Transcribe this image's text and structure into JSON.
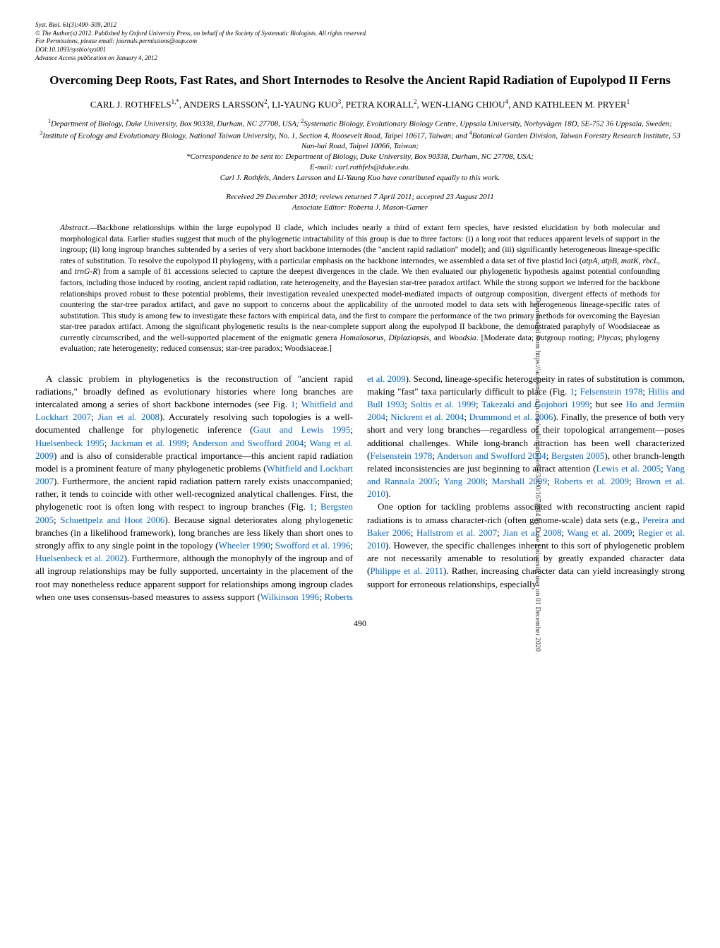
{
  "header": {
    "line1": "Syst. Biol. 61(3):490–509, 2012",
    "line2": "© The Author(s) 2012. Published by Oxford University Press, on behalf of the Society of Systematic Biologists. All rights reserved.",
    "line3": "For Permissions, please email: journals.permissions@oup.com",
    "line4": "DOI:10.1093/sysbio/sys001",
    "line5": "Advance Access publication on January 4, 2012"
  },
  "title": "Overcoming Deep Roots, Fast Rates, and Short Internodes to Resolve the Ancient Rapid Radiation of Eupolypod II Ferns",
  "authors": "CARL J. ROTHFELS<sup>1,*</sup>, ANDERS LARSSON<sup>2</sup>, LI-YAUNG KUO<sup>3</sup>, PETRA KORALL<sup>2</sup>, WEN-LIANG CHIOU<sup>4</sup>, AND KATHLEEN M. PRYER<sup>1</sup>",
  "affiliations": "<sup>1</sup>Department of Biology, Duke University, Box 90338, Durham, NC 27708, USA; <sup>2</sup>Systematic Biology, Evolutionary Biology Centre, Uppsala University, Norbyvägen 18D, SE-752 36 Uppsala, Sweden; <sup>3</sup>Institute of Ecology and Evolutionary Biology, National Taiwan University, No. 1, Section 4, Roosevelt Road, Taipei 10617, Taiwan; and <sup>4</sup>Botanical Garden Division, Taiwan Forestry Research Institute, 53 Nan-hai Road, Taipei 10066, Taiwan;<br>*Correspondence to be sent to: Department of Biology, Duke University, Box 90338, Durham, NC 27708, USA;<br>E-mail: carl.rothfels@duke.edu.<br>Carl J. Rothfels, Anders Larsson and Li-Yaung Kuo have contributed equally to this work.",
  "dates": "Received 29 December 2010; reviews returned 7 April 2011; accepted 23 August 2011<br>Associate Editor: Roberta J. Mason-Gamer",
  "abstract": "Backbone relationships within the large eupolypod II clade, which includes nearly a third of extant fern species, have resisted elucidation by both molecular and morphological data. Earlier studies suggest that much of the phylogenetic intractability of this group is due to three factors: (i) a long root that reduces apparent levels of support in the ingroup; (ii) long ingroup branches subtended by a series of very short backbone internodes (the \"ancient rapid radiation\" model); and (iii) significantly heterogeneous lineage-specific rates of substitution. To resolve the eupolypod II phylogeny, with a particular emphasis on the backbone internodes, we assembled a data set of five plastid loci (<i>atpA</i>, <i>atpB</i>, <i>matK</i>, <i>rbcL</i>, and <i>trnG-R</i>) from a sample of 81 accessions selected to capture the deepest divergences in the clade. We then evaluated our phylogenetic hypothesis against potential confounding factors, including those induced by rooting, ancient rapid radiation, rate heterogeneity, and the Bayesian star-tree paradox artifact. While the strong support we inferred for the backbone relationships proved robust to these potential problems, their investigation revealed unexpected model-mediated impacts of outgroup composition, divergent effects of methods for countering the star-tree paradox artifact, and gave no support to concerns about the applicability of the unrooted model to data sets with heterogeneous lineage-specific rates of substitution. This study is among few to investigate these factors with empirical data, and the first to compare the performance of the two primary methods for overcoming the Bayesian star-tree paradox artifact. Among the significant phylogenetic results is the near-complete support along the eupolypod II backbone, the demonstrated paraphyly of Woodsiaceae as currently circumscribed, and the well-supported placement of the enigmatic genera <i>Homalosorus</i>, <i>Diplaziopsis</i>, and <i>Woodsia</i>. [Moderate data; outgroup rooting; <i>Phycas</i>; phylogeny evaluation; rate heterogeneity; reduced consensus; star-tree paradox; Woodsiaceae.]",
  "body_para1": "A classic problem in phylogenetics is the reconstruction of \"ancient rapid radiations,\" broadly defined as evolutionary histories where long branches are intercalated among a series of short backbone internodes (see Fig. <span class=\"ref-link\">1</span>; <span class=\"ref-link\">Whitfield and Lockhart 2007</span>; <span class=\"ref-link\">Jian et al. 2008</span>). Accurately resolving such topologies is a well-documented challenge for phylogenetic inference (<span class=\"ref-link\">Gaut and Lewis 1995</span>; <span class=\"ref-link\">Huelsenbeck 1995</span>; <span class=\"ref-link\">Jackman et al. 1999</span>; <span class=\"ref-link\">Anderson and Swofford 2004</span>; <span class=\"ref-link\">Wang et al. 2009</span>) and is also of considerable practical importance—this ancient rapid radiation model is a prominent feature of many phylogenetic problems (<span class=\"ref-link\">Whitfield and Lockhart 2007</span>). Furthermore, the ancient rapid radiation pattern rarely exists unaccompanied; rather, it tends to coincide with other well-recognized analytical challenges. First, the phylogenetic root is often long with respect to ingroup branches (Fig. <span class=\"ref-link\">1</span>; <span class=\"ref-link\">Bergsten 2005</span>; <span class=\"ref-link\">Schuettpelz and Hoot 2006</span>). Because signal deteriorates along phylogenetic branches (in a likelihood framework), long branches are less likely than short ones to strongly affix to any single point in the topology (<span class=\"ref-link\">Wheeler 1990</span>; <span class=\"ref-link\">Swofford et al. 1996</span>; <span class=\"ref-link\">Huelsenbeck et al. 2002</span>). Furthermore, although the monophyly of the ingroup and of all ingroup relationships may be fully supported, uncertainty in the placement of the root may nonetheless reduce apparent support for relationships among ingroup clades when one uses consensus-based measures to assess support (<span class=\"ref-link\">Wilkinson 1996</span>; <span class=\"ref-link\">Roberts et al. 2009</span>). Second, lineage-specific heterogeneity in rates of substitution is common, making \"fast\" taxa particularly difficult to place (Fig. <span class=\"ref-link\">1</span>; <span class=\"ref-link\">Felsenstein 1978</span>; <span class=\"ref-link\">Hillis and Bull 1993</span>; <span class=\"ref-link\">Soltis et al. 1999</span>; <span class=\"ref-link\">Takezaki and Gojobori 1999</span>; but see <span class=\"ref-link\">Ho and Jermiin 2004</span>; <span class=\"ref-link\">Nickrent et al. 2004</span>; <span class=\"ref-link\">Drummond et al. 2006</span>). Finally, the presence of both very short and very long branches—regardless of their topological arrangement—poses additional challenges. While long-branch attraction has been well characterized (<span class=\"ref-link\">Felsenstein 1978</span>; <span class=\"ref-link\">Anderson and Swofford 2004</span>; <span class=\"ref-link\">Bergsten 2005</span>), other branch-length related inconsistencies are just beginning to attract attention (<span class=\"ref-link\">Lewis et al. 2005</span>; <span class=\"ref-link\">Yang and Rannala 2005</span>; <span class=\"ref-link\">Yang 2008</span>; <span class=\"ref-link\">Marshall 2009</span>; <span class=\"ref-link\">Roberts et al. 2009</span>; <span class=\"ref-link\">Brown et al. 2010</span>).",
  "body_para2": "One option for tackling problems associated with reconstructing ancient rapid radiations is to amass character-rich (often genome-scale) data sets (e.g., <span class=\"ref-link\">Pereira and Baker 2006</span>; <span class=\"ref-link\">Hallstrom et al. 2007</span>; <span class=\"ref-link\">Jian et al. 2008</span>; <span class=\"ref-link\">Wang et al. 2009</span>; <span class=\"ref-link\">Regier et al. 2010</span>). However, the specific challenges inherent to this sort of phylogenetic problem are not necessarily amenable to resolution by greatly expanded character data (<span class=\"ref-link\">Philippe et al. 2011</span>). Rather, increasing character data can yield increasingly strong support for erroneous relationships, especially",
  "sidebar": "Downloaded from https://academic.oup.com/sysbio/article/61/3/490/1674014 by Duke University user on 01 December 2020",
  "page_number": "490"
}
